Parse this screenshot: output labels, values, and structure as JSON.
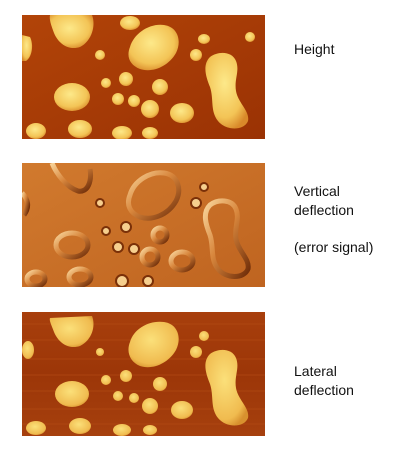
{
  "labels": {
    "height": "Height",
    "vertical": "Vertical\ndeflection",
    "error": "(error signal)",
    "lateral": "Lateral\ndeflection"
  },
  "colors": {
    "height_bg": "#a83a05",
    "height_spot": "#f7cf63",
    "vertical_bg": "#c96d26",
    "lateral_bg": "#a33c0a",
    "lateral_spot": "#f5c45c"
  }
}
